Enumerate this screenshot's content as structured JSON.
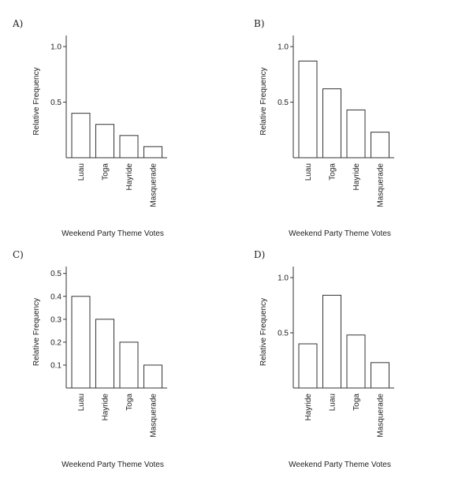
{
  "chart_data": [
    {
      "panel": "A)",
      "type": "bar",
      "categories": [
        "Luau",
        "Toga",
        "Hayride",
        "Masquerade"
      ],
      "values": [
        0.4,
        0.3,
        0.2,
        0.1
      ],
      "yticks": [
        0.5,
        1.0
      ],
      "ytick_labels": [
        "0.5",
        "1.0"
      ],
      "ylim": [
        0,
        1.1
      ],
      "ylabel": "Relative Frequency",
      "xlabel": "Weekend Party Theme Votes"
    },
    {
      "panel": "B)",
      "type": "bar",
      "categories": [
        "Luau",
        "Toga",
        "Hayride",
        "Masquerade"
      ],
      "values": [
        0.87,
        0.62,
        0.43,
        0.23
      ],
      "yticks": [
        0.5,
        1.0
      ],
      "ytick_labels": [
        "0.5",
        "1.0"
      ],
      "ylim": [
        0,
        1.1
      ],
      "ylabel": "Relative Frequency",
      "xlabel": "Weekend Party Theme Votes"
    },
    {
      "panel": "C)",
      "type": "bar",
      "categories": [
        "Luau",
        "Hayride",
        "Toga",
        "Masquerade"
      ],
      "values": [
        0.4,
        0.3,
        0.2,
        0.1
      ],
      "yticks": [
        0.1,
        0.2,
        0.3,
        0.4,
        0.5
      ],
      "ytick_labels": [
        "0.1",
        "0.2",
        "0.3",
        "0.4",
        "0.5"
      ],
      "ylim": [
        0,
        0.53
      ],
      "ylabel": "Relative Frequency",
      "xlabel": "Weekend Party Theme Votes"
    },
    {
      "panel": "D)",
      "type": "bar",
      "categories": [
        "Hayride",
        "Luau",
        "Toga",
        "Masquerade"
      ],
      "values": [
        0.4,
        0.84,
        0.48,
        0.23
      ],
      "yticks": [
        0.5,
        1.0
      ],
      "ytick_labels": [
        "0.5",
        "1.0"
      ],
      "ylim": [
        0,
        1.1
      ],
      "ylabel": "Relative Frequency",
      "xlabel": "Weekend Party Theme Votes"
    }
  ]
}
